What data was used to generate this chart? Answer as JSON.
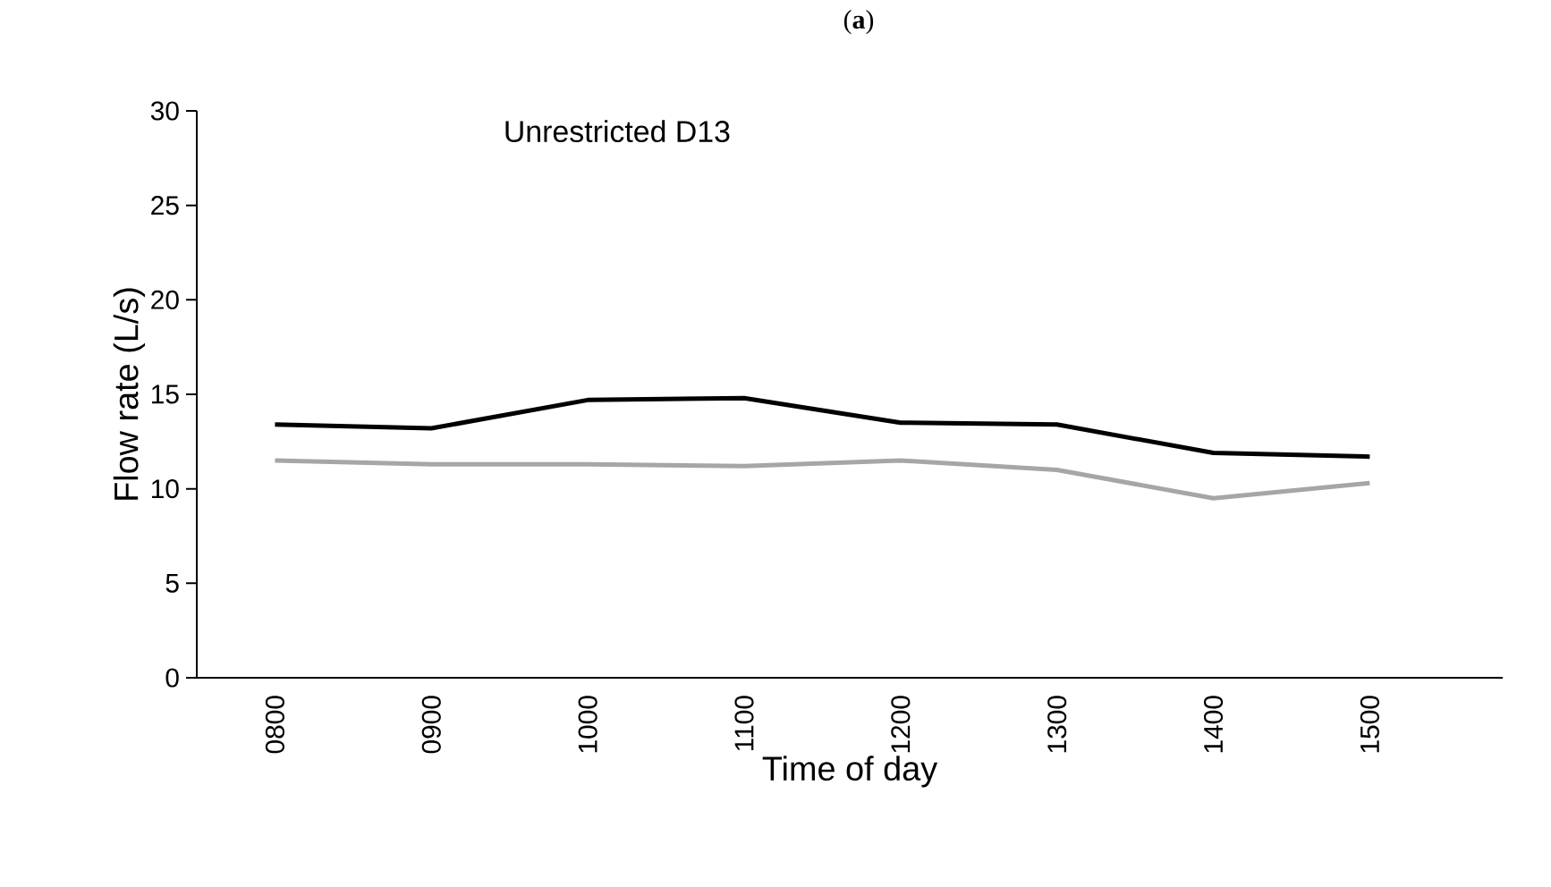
{
  "chart_data": {
    "type": "line",
    "title": "(**a**)",
    "xlabel": "Time of day",
    "ylabel": "Flow rate (L/s)",
    "annotations": [
      "Unrestricted D13"
    ],
    "categories": [
      "0800",
      "0900",
      "1000",
      "1100",
      "1200",
      "1300",
      "1400",
      "1500"
    ],
    "series": [
      {
        "color": "#000000",
        "values": [
          13.4,
          13.2,
          14.7,
          14.8,
          13.5,
          13.4,
          11.9,
          11.7
        ]
      },
      {
        "color": "#a6a6a6",
        "values": [
          11.5,
          11.3,
          11.3,
          11.2,
          11.5,
          11.0,
          9.5,
          10.3
        ]
      }
    ],
    "ylim": [
      0,
      30
    ],
    "yticks": [
      0,
      5,
      10,
      15,
      20,
      25,
      30
    ],
    "grid": false,
    "marker": "none",
    "line_style": "solid"
  }
}
